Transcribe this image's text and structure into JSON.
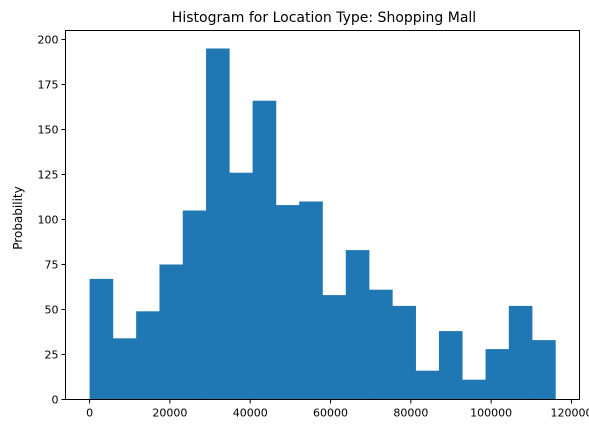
{
  "chart_data": {
    "type": "bar",
    "title": "Histogram for Location Type: Shopping Mall",
    "xlabel": "",
    "ylabel": "Probability",
    "bar_color": "#1f77b4",
    "xlim": [
      -6000,
      122000
    ],
    "ylim": [
      0,
      205
    ],
    "xticks": [
      0,
      20000,
      40000,
      60000,
      80000,
      100000,
      120000
    ],
    "xtick_labels": [
      "0",
      "20000",
      "40000",
      "60000",
      "80000",
      "100000",
      "120000"
    ],
    "yticks": [
      0,
      25,
      50,
      75,
      100,
      125,
      150,
      175,
      200
    ],
    "ytick_labels": [
      "0",
      "25",
      "50",
      "75",
      "100",
      "125",
      "150",
      "175",
      "200"
    ],
    "bin_edges": [
      0,
      5800,
      11600,
      17400,
      23200,
      29000,
      34800,
      40600,
      46400,
      52200,
      58000,
      63800,
      69600,
      75400,
      81200,
      87000,
      92800,
      98600,
      104400,
      110200,
      116000
    ],
    "values": [
      67,
      34,
      49,
      75,
      105,
      195,
      126,
      166,
      108,
      110,
      58,
      83,
      61,
      52,
      16,
      38,
      11,
      28,
      52,
      33
    ],
    "grid": false,
    "legend": "none"
  }
}
